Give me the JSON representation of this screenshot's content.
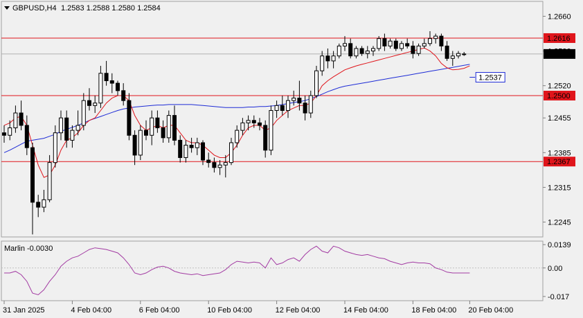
{
  "header": {
    "symbol": "GBPUSD,H4",
    "ohlc": "1.2583 1.2588 1.2580 1.2584"
  },
  "oscillator": {
    "label": "Marlin -0.0030"
  },
  "colors": {
    "bg": "#f0f0f0",
    "level": "#e0151b",
    "ma_fast": "#e0151b",
    "ma_slow": "#1d2bd6",
    "osc": "#a23aa2",
    "tag_blue": "#1d2bd6"
  },
  "chart_data": [
    {
      "type": "candlestick",
      "title": "",
      "ylim": [
        1.2215,
        1.269
      ],
      "y_ticks": [
        "1.2660",
        "1.2590",
        "1.2520",
        "1.2455",
        "1.2385",
        "1.2315",
        "1.2245"
      ],
      "x_ticks": [
        "31 Jan 2025",
        "4 Feb 04:00",
        "6 Feb 04:00",
        "10 Feb 04:00",
        "12 Feb 04:00",
        "14 Feb 04:00",
        "18 Feb 04:00",
        "20 Feb 04:00"
      ],
      "levels": [
        {
          "value": 1.2616,
          "label": "1.2616"
        },
        {
          "value": 1.25,
          "label": "1.2500"
        },
        {
          "value": 1.2367,
          "label": "1.2367"
        }
      ],
      "current_price": {
        "value": 1.2584,
        "label": "1.2584"
      },
      "ma_tag": {
        "value": 1.2537,
        "label": "1.2537"
      },
      "candles": [
        [
          1.2425,
          1.244,
          1.2405,
          1.242
        ],
        [
          1.242,
          1.245,
          1.241,
          1.2435
        ],
        [
          1.2435,
          1.248,
          1.2425,
          1.2465
        ],
        [
          1.2465,
          1.249,
          1.243,
          1.244
        ],
        [
          1.244,
          1.246,
          1.238,
          1.2395
        ],
        [
          1.2395,
          1.2405,
          1.222,
          1.2285
        ],
        [
          1.2285,
          1.23,
          1.2255,
          1.2275
        ],
        [
          1.2275,
          1.231,
          1.2265,
          1.229
        ],
        [
          1.229,
          1.238,
          1.2285,
          1.2365
        ],
        [
          1.2365,
          1.244,
          1.2355,
          1.2425
        ],
        [
          1.2425,
          1.247,
          1.241,
          1.2455
        ],
        [
          1.2455,
          1.247,
          1.2395,
          1.241
        ],
        [
          1.241,
          1.244,
          1.2395,
          1.243
        ],
        [
          1.243,
          1.247,
          1.242,
          1.244
        ],
        [
          1.244,
          1.2505,
          1.243,
          1.249
        ],
        [
          1.249,
          1.2515,
          1.247,
          1.248
        ],
        [
          1.248,
          1.25,
          1.2465,
          1.2485
        ],
        [
          1.2485,
          1.256,
          1.2475,
          1.2545
        ],
        [
          1.2545,
          1.257,
          1.252,
          1.253
        ],
        [
          1.253,
          1.2545,
          1.2505,
          1.2525
        ],
        [
          1.2525,
          1.253,
          1.25,
          1.251
        ],
        [
          1.251,
          1.2525,
          1.248,
          1.249
        ],
        [
          1.249,
          1.2505,
          1.241,
          1.242
        ],
        [
          1.242,
          1.243,
          1.236,
          1.238
        ],
        [
          1.238,
          1.244,
          1.237,
          1.243
        ],
        [
          1.243,
          1.245,
          1.241,
          1.242
        ],
        [
          1.242,
          1.247,
          1.24,
          1.2455
        ],
        [
          1.2455,
          1.247,
          1.2425,
          1.2435
        ],
        [
          1.2435,
          1.245,
          1.2405,
          1.2415
        ],
        [
          1.2415,
          1.247,
          1.2405,
          1.246
        ],
        [
          1.246,
          1.248,
          1.24,
          1.241
        ],
        [
          1.241,
          1.242,
          1.2365,
          1.2375
        ],
        [
          1.2375,
          1.241,
          1.2365,
          1.24
        ],
        [
          1.24,
          1.2415,
          1.2385,
          1.2395
        ],
        [
          1.2395,
          1.2415,
          1.238,
          1.2405
        ],
        [
          1.2405,
          1.241,
          1.236,
          1.237
        ],
        [
          1.237,
          1.2385,
          1.2355,
          1.2365
        ],
        [
          1.2365,
          1.2375,
          1.2345,
          1.2355
        ],
        [
          1.2355,
          1.237,
          1.234,
          1.236
        ],
        [
          1.236,
          1.238,
          1.2335,
          1.2365
        ],
        [
          1.2365,
          1.2415,
          1.236,
          1.2405
        ],
        [
          1.2405,
          1.244,
          1.2395,
          1.243
        ],
        [
          1.243,
          1.2455,
          1.242,
          1.2445
        ],
        [
          1.2445,
          1.246,
          1.243,
          1.245
        ],
        [
          1.245,
          1.246,
          1.2435,
          1.2445
        ],
        [
          1.2445,
          1.2455,
          1.243,
          1.244
        ],
        [
          1.244,
          1.245,
          1.2375,
          1.239
        ],
        [
          1.239,
          1.248,
          1.238,
          1.247
        ],
        [
          1.247,
          1.249,
          1.2455,
          1.248
        ],
        [
          1.248,
          1.25,
          1.246,
          1.247
        ],
        [
          1.247,
          1.25,
          1.2455,
          1.249
        ],
        [
          1.249,
          1.251,
          1.248,
          1.2495
        ],
        [
          1.2495,
          1.253,
          1.247,
          1.2485
        ],
        [
          1.2485,
          1.25,
          1.245,
          1.2465
        ],
        [
          1.2465,
          1.251,
          1.2455,
          1.25
        ],
        [
          1.25,
          1.256,
          1.2495,
          1.255
        ],
        [
          1.255,
          1.259,
          1.254,
          1.258
        ],
        [
          1.258,
          1.2595,
          1.2555,
          1.257
        ],
        [
          1.257,
          1.259,
          1.2555,
          1.258
        ],
        [
          1.258,
          1.2605,
          1.2575,
          1.26
        ],
        [
          1.26,
          1.262,
          1.259,
          1.2605
        ],
        [
          1.2605,
          1.2615,
          1.2575,
          1.258
        ],
        [
          1.258,
          1.26,
          1.2575,
          1.2595
        ],
        [
          1.2595,
          1.26,
          1.258,
          1.2585
        ],
        [
          1.2585,
          1.26,
          1.2575,
          1.259
        ],
        [
          1.259,
          1.26,
          1.258,
          1.2595
        ],
        [
          1.2595,
          1.262,
          1.259,
          1.2615
        ],
        [
          1.2615,
          1.2625,
          1.259,
          1.26
        ],
        [
          1.26,
          1.2615,
          1.2595,
          1.261
        ],
        [
          1.261,
          1.2615,
          1.259,
          1.2595
        ],
        [
          1.2595,
          1.261,
          1.259,
          1.2605
        ],
        [
          1.2605,
          1.2615,
          1.2595,
          1.26
        ],
        [
          1.26,
          1.261,
          1.2575,
          1.2585
        ],
        [
          1.2585,
          1.2605,
          1.258,
          1.26
        ],
        [
          1.26,
          1.2615,
          1.2595,
          1.2605
        ],
        [
          1.2605,
          1.263,
          1.26,
          1.2615
        ],
        [
          1.2615,
          1.2625,
          1.2605,
          1.262
        ],
        [
          1.262,
          1.2625,
          1.259,
          1.26
        ],
        [
          1.26,
          1.261,
          1.257,
          1.2575
        ],
        [
          1.2575,
          1.259,
          1.256,
          1.258
        ],
        [
          1.258,
          1.259,
          1.2575,
          1.2585
        ],
        [
          1.2583,
          1.2588,
          1.258,
          1.2584
        ]
      ],
      "ma_fast": [
        1.244,
        1.2445,
        1.2455,
        1.2458,
        1.244,
        1.24,
        1.236,
        1.2335,
        1.234,
        1.236,
        1.239,
        1.241,
        1.2415,
        1.2425,
        1.244,
        1.245,
        1.2455,
        1.247,
        1.2485,
        1.2495,
        1.25,
        1.25,
        1.249,
        1.246,
        1.244,
        1.243,
        1.2435,
        1.244,
        1.2435,
        1.244,
        1.244,
        1.2425,
        1.241,
        1.2405,
        1.2405,
        1.24,
        1.239,
        1.238,
        1.2375,
        1.2375,
        1.2385,
        1.24,
        1.242,
        1.2435,
        1.244,
        1.244,
        1.243,
        1.2435,
        1.245,
        1.246,
        1.247,
        1.2475,
        1.248,
        1.248,
        1.2485,
        1.25,
        1.252,
        1.253,
        1.2538,
        1.2545,
        1.2552,
        1.2556,
        1.256,
        1.2563,
        1.2566,
        1.2569,
        1.2572,
        1.2575,
        1.2578,
        1.2581,
        1.2584,
        1.2587,
        1.259,
        1.2593,
        1.2596,
        1.259,
        1.258,
        1.2565,
        1.2556,
        1.2552,
        1.2553,
        1.2555,
        1.256
      ],
      "ma_slow": [
        1.2385,
        1.239,
        1.2396,
        1.2402,
        1.2408,
        1.241,
        1.2412,
        1.2414,
        1.2418,
        1.2422,
        1.2428,
        1.2432,
        1.2436,
        1.244,
        1.2445,
        1.245,
        1.2454,
        1.2458,
        1.2462,
        1.2466,
        1.247,
        1.2473,
        1.2475,
        1.2477,
        1.2478,
        1.2479,
        1.248,
        1.2481,
        1.2481,
        1.2482,
        1.2482,
        1.2482,
        1.2482,
        1.2482,
        1.2481,
        1.248,
        1.2479,
        1.2478,
        1.2477,
        1.2476,
        1.2476,
        1.2476,
        1.2476,
        1.2477,
        1.2477,
        1.2478,
        1.2478,
        1.2479,
        1.248,
        1.2482,
        1.2484,
        1.2486,
        1.2488,
        1.249,
        1.2494,
        1.2498,
        1.2503,
        1.2508,
        1.2512,
        1.2516,
        1.2519,
        1.2521,
        1.2523,
        1.2525,
        1.2527,
        1.2529,
        1.2531,
        1.2533,
        1.2535,
        1.2537,
        1.2539,
        1.2541,
        1.2543,
        1.2545,
        1.2547,
        1.2549,
        1.2551,
        1.2553,
        1.2555,
        1.2557,
        1.2559,
        1.2561,
        1.2563
      ]
    },
    {
      "type": "line",
      "title": "",
      "ylim": [
        -0.0195,
        0.016
      ],
      "y_ticks": [
        "0.0139",
        "0.00",
        "-0.017"
      ],
      "zero_line": true,
      "values": [
        -0.003,
        -0.003,
        -0.002,
        -0.004,
        -0.008,
        -0.015,
        -0.016,
        -0.013,
        -0.008,
        -0.004,
        0.001,
        0.004,
        0.006,
        0.007,
        0.009,
        0.011,
        0.012,
        0.0115,
        0.011,
        0.01,
        0.009,
        0.006,
        0.002,
        -0.003,
        -0.004,
        -0.003,
        -0.001,
        0.0005,
        0.001,
        0.0,
        -0.002,
        -0.003,
        -0.0035,
        -0.004,
        -0.0035,
        -0.0045,
        -0.004,
        -0.0035,
        -0.003,
        -0.001,
        0.002,
        0.004,
        0.0035,
        0.003,
        0.0035,
        0.003,
        0.0,
        0.006,
        0.002,
        0.003,
        0.005,
        0.006,
        0.004,
        0.008,
        0.011,
        0.013,
        0.01,
        0.009,
        0.013,
        0.012,
        0.01,
        0.009,
        0.008,
        0.0075,
        0.008,
        0.007,
        0.006,
        0.0055,
        0.004,
        0.003,
        0.002,
        0.003,
        0.0035,
        0.003,
        0.003,
        0.0025,
        0.0,
        -0.001,
        -0.0025,
        -0.003,
        -0.003,
        -0.003,
        -0.003
      ]
    }
  ]
}
